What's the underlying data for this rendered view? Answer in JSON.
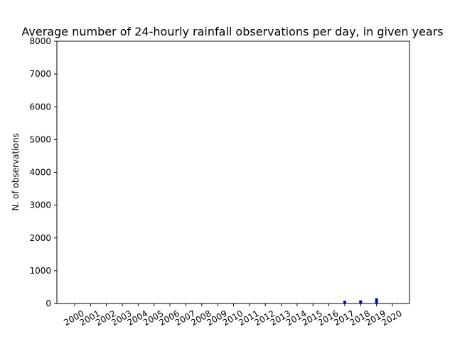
{
  "chart_data": {
    "type": "bar",
    "title": "Average number of 24-hourly rainfall observations per day, in given years",
    "xlabel": "",
    "ylabel": "N. of observations",
    "ylim": [
      0,
      8000
    ],
    "yticks": [
      0,
      1000,
      2000,
      3000,
      4000,
      5000,
      6000,
      7000,
      8000
    ],
    "categories": [
      "2000",
      "2001",
      "2002",
      "2003",
      "2004",
      "2005",
      "2006",
      "2007",
      "2008",
      "2009",
      "2010",
      "2011",
      "2012",
      "2013",
      "2014",
      "2015",
      "2016",
      "2017",
      "2018",
      "2019",
      "2020"
    ],
    "values": [
      0,
      0,
      0,
      0,
      0,
      0,
      0,
      0,
      0,
      0,
      0,
      0,
      0,
      0,
      0,
      0,
      0,
      85,
      95,
      160,
      0
    ],
    "bar_color": "#0000cc",
    "grid": false,
    "legend": "none"
  }
}
